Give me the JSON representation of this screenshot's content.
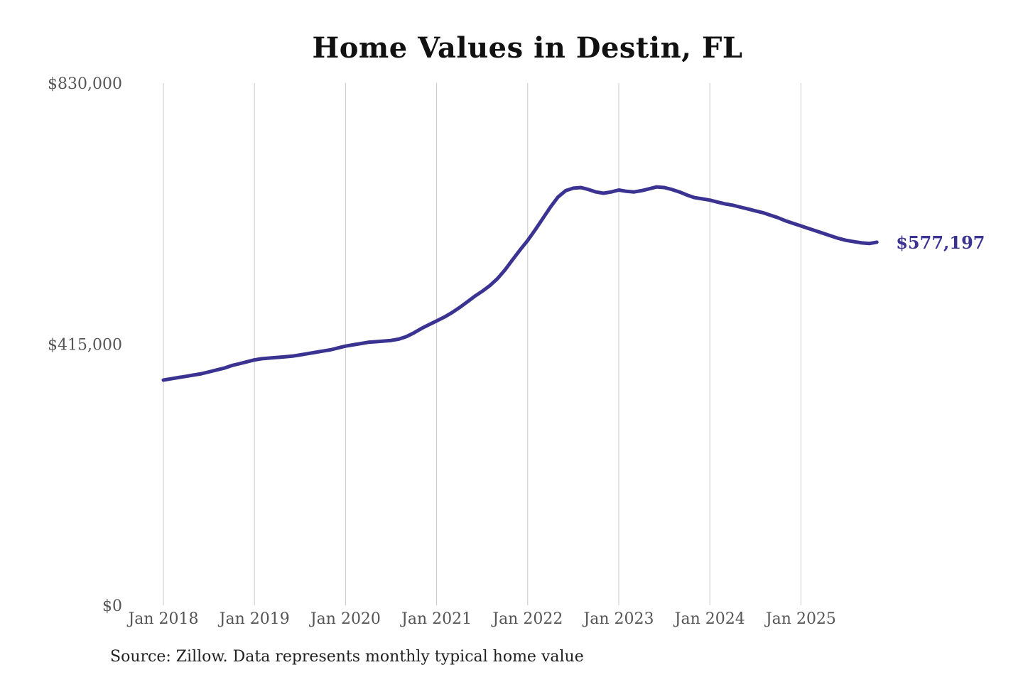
{
  "chart_data": {
    "type": "line",
    "title": "Home Values in Destin, FL",
    "series_name": "Monthly typical home value",
    "start_month": "2018-01",
    "x_tick_labels": [
      "Jan 2018",
      "Jan 2019",
      "Jan 2020",
      "Jan 2021",
      "Jan 2022",
      "Jan 2023",
      "Jan 2024",
      "Jan 2025"
    ],
    "y_ticks": [
      {
        "label": "$830,000",
        "value": 830000
      },
      {
        "label": "$415,000",
        "value": 415000
      },
      {
        "label": "$0",
        "value": 0
      }
    ],
    "ylim": [
      0,
      830000
    ],
    "grid": "vertical-only",
    "legend_position": "none",
    "values": [
      358000,
      360000,
      362000,
      364000,
      366000,
      368000,
      371000,
      374000,
      377000,
      381000,
      384000,
      387000,
      390000,
      392000,
      393000,
      394000,
      395000,
      396000,
      398000,
      400000,
      402000,
      404000,
      406000,
      409000,
      412000,
      414000,
      416000,
      418000,
      419000,
      420000,
      421000,
      423000,
      427000,
      433000,
      440000,
      446000,
      452000,
      458000,
      465000,
      473000,
      482000,
      491000,
      499000,
      508000,
      519000,
      533000,
      549000,
      565000,
      580000,
      597000,
      615000,
      633000,
      649000,
      659000,
      663000,
      664000,
      661000,
      657000,
      655000,
      657000,
      660000,
      658000,
      657000,
      659000,
      662000,
      665000,
      664000,
      661000,
      657000,
      652000,
      648000,
      646000,
      644000,
      641000,
      638000,
      636000,
      633000,
      630000,
      627000,
      624000,
      620000,
      616000,
      611000,
      607000,
      603000,
      599000,
      595000,
      591000,
      587000,
      583000,
      580000,
      578000,
      576000,
      575000,
      577197
    ],
    "end_value": 577197,
    "end_label": "$577,197",
    "source_note": "Source: Zillow. Data represents monthly typical home value",
    "line_color": "#3b3392",
    "grid_color": "#c9c9c9",
    "label_color": "#555555",
    "title_color": "#111111"
  }
}
